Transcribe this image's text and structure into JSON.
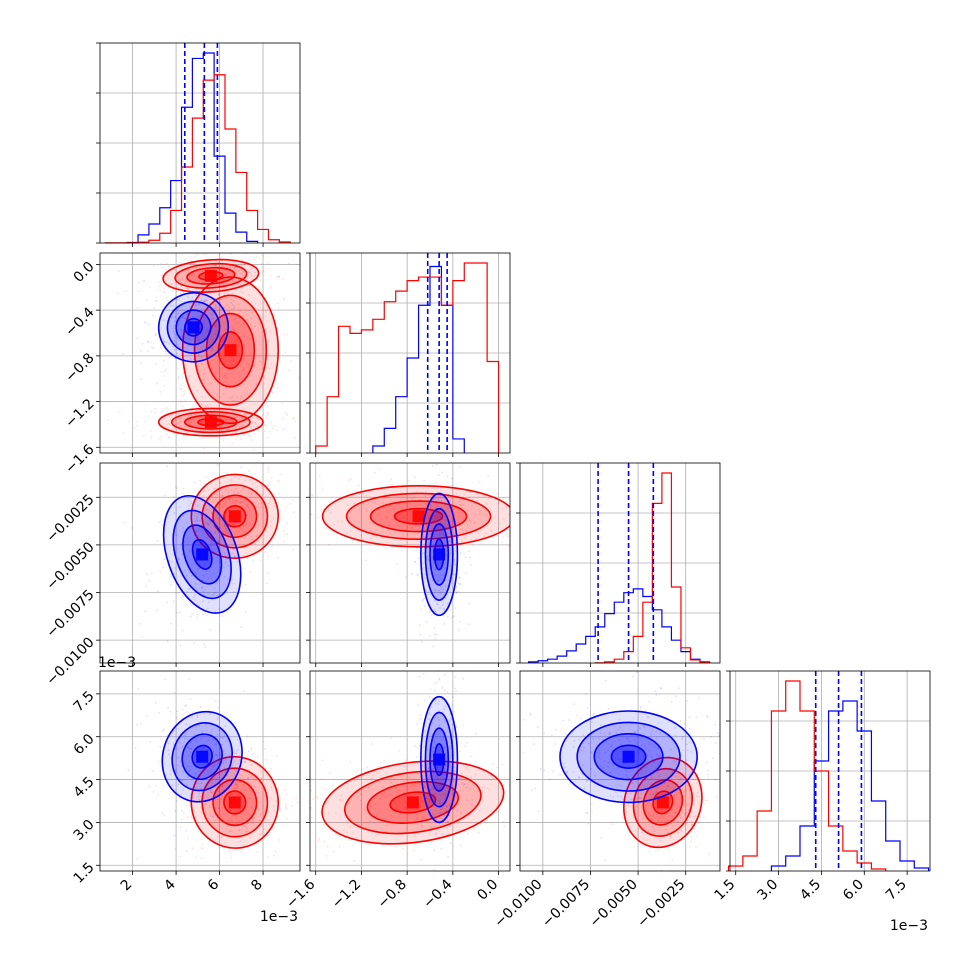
{
  "colors": {
    "series_a": "#ff0000",
    "series_b": "#0000ff",
    "grid": "#b0b0b0",
    "axes": "#000000"
  },
  "chart_data": {
    "type": "corner",
    "grid": true,
    "params": [
      {
        "id": "p0",
        "range": [
          0.0005,
          0.0097
        ],
        "ticks": [
          0.002,
          0.004,
          0.006,
          0.008
        ],
        "tick_labels": [
          "2",
          "4",
          "6",
          "8"
        ],
        "offset": "1e−3",
        "quantiles_b": [
          0.0044,
          0.0053,
          0.0059
        ]
      },
      {
        "id": "p1",
        "range": [
          -1.65,
          0.1
        ],
        "ticks": [
          -1.6,
          -1.2,
          -0.8,
          -0.4,
          0.0
        ],
        "tick_labels": [
          "−1.6",
          "−1.2",
          "−0.8",
          "−0.4",
          "0.0"
        ],
        "offset": "",
        "quantiles_b": [
          -0.62,
          -0.52,
          -0.45
        ]
      },
      {
        "id": "p2",
        "range": [
          -0.0112,
          -0.0007
        ],
        "ticks": [
          -0.01,
          -0.0075,
          -0.005,
          -0.0025
        ],
        "tick_labels": [
          "−0.0100",
          "−0.0075",
          "−0.0050",
          "−0.0025"
        ],
        "offset": "",
        "quantiles_b": [
          -0.0071,
          -0.0055,
          -0.0042
        ]
      },
      {
        "id": "p3",
        "range": [
          0.0013,
          0.0083
        ],
        "ticks": [
          0.0015,
          0.003,
          0.0045,
          0.006,
          0.0075
        ],
        "tick_labels": [
          "1.5",
          "3.0",
          "4.5",
          "6.0",
          "7.5"
        ],
        "offset": "1e−3",
        "quantiles_b": [
          0.0043,
          0.0051,
          0.0059
        ]
      }
    ],
    "marginals": [
      {
        "param": "p0",
        "series_a": {
          "bins": [
            0.001,
            0.0015,
            0.002,
            0.0025,
            0.003,
            0.0035,
            0.004,
            0.0045,
            0.005,
            0.0055,
            0.006,
            0.0065,
            0.007,
            0.0075,
            0.008,
            0.0085,
            0.009
          ],
          "values": [
            0.02,
            0.03,
            0.05,
            0.15,
            0.5,
            1.8,
            6.0,
            14.0,
            23.0,
            30.0,
            31.0,
            21.0,
            13.0,
            6.0,
            2.5,
            0.6,
            0.2
          ]
        },
        "series_b": {
          "bins": [
            0.002,
            0.0025,
            0.003,
            0.0035,
            0.004,
            0.0045,
            0.005,
            0.0055,
            0.006,
            0.0065,
            0.007,
            0.0075
          ],
          "values": [
            0.1,
            1.5,
            3.5,
            6.5,
            11.5,
            25.0,
            34.0,
            35.0,
            16.0,
            5.5,
            2.0,
            0.3
          ]
        }
      },
      {
        "param": "p1",
        "series_a": {
          "bins": [
            -1.55,
            -1.45,
            -1.35,
            -1.25,
            -1.15,
            -1.05,
            -0.95,
            -0.85,
            -0.75,
            -0.65,
            -0.55,
            -0.45,
            -0.35,
            -0.25,
            -0.15,
            -0.05
          ],
          "values": [
            1.0,
            8.0,
            18.0,
            17.0,
            17.5,
            19.0,
            21.5,
            23.0,
            24.5,
            25.0,
            25.0,
            21.0,
            24.5,
            27.0,
            27.0,
            13.0
          ]
        },
        "series_b": {
          "bins": [
            -1.05,
            -0.95,
            -0.85,
            -0.75,
            -0.65,
            -0.55,
            -0.45,
            -0.35
          ],
          "values": [
            1.0,
            3.5,
            8.0,
            13.5,
            21.0,
            26.5,
            21.0,
            2.0
          ]
        }
      },
      {
        "param": "p2",
        "series_a": {
          "bins": [
            -0.007,
            -0.0065,
            -0.006,
            -0.0055,
            -0.005,
            -0.0045,
            -0.004,
            -0.0035,
            -0.003,
            -0.0025,
            -0.002,
            -0.0015
          ],
          "values": [
            0.05,
            0.3,
            1.0,
            3.0,
            7.0,
            16.0,
            42.0,
            50.0,
            20.0,
            4.0,
            0.8,
            0.2
          ]
        },
        "series_b": {
          "bins": [
            -0.0105,
            -0.01,
            -0.0095,
            -0.009,
            -0.0085,
            -0.008,
            -0.0075,
            -0.007,
            -0.0065,
            -0.006,
            -0.0055,
            -0.005,
            -0.0045,
            -0.004,
            -0.0035,
            -0.003,
            -0.0025,
            -0.002,
            -0.0015
          ],
          "values": [
            0.3,
            0.6,
            1.0,
            1.8,
            3.2,
            5.0,
            7.0,
            9.5,
            13.0,
            16.0,
            18.5,
            19.5,
            17.5,
            14.0,
            9.5,
            6.0,
            3.0,
            1.0,
            0.3
          ]
        }
      },
      {
        "param": "p3",
        "series_a": {
          "bins": [
            0.0015,
            0.002,
            0.0025,
            0.003,
            0.0035,
            0.004,
            0.0045,
            0.005,
            0.0055,
            0.006,
            0.0065
          ],
          "values": [
            0.5,
            1.5,
            6.0,
            16.0,
            19.0,
            16.0,
            10.0,
            4.5,
            2.0,
            0.8,
            0.2
          ]
        },
        "series_b": {
          "bins": [
            0.003,
            0.0035,
            0.004,
            0.0045,
            0.005,
            0.0055,
            0.006,
            0.0065,
            0.007,
            0.0075,
            0.008
          ],
          "values": [
            0.5,
            1.5,
            4.5,
            11.0,
            16.0,
            17.0,
            14.0,
            7.0,
            3.0,
            1.0,
            0.3
          ]
        }
      }
    ],
    "joints": [
      {
        "x": "p0",
        "y": "p1",
        "series_a": [
          {
            "cx": 0.0065,
            "cy": -0.75,
            "sx": 0.0011,
            "sy": 0.32,
            "rho": 0.0
          },
          {
            "cx": 0.0056,
            "cy": -0.1,
            "sx": 0.0011,
            "sy": 0.07,
            "rho": 0.2
          },
          {
            "cx": 0.0056,
            "cy": -1.38,
            "sx": 0.0012,
            "sy": 0.06,
            "rho": 0.0
          }
        ],
        "series_b": [
          {
            "cx": 0.0048,
            "cy": -0.55,
            "sx": 0.0008,
            "sy": 0.15,
            "rho": 0.5
          }
        ]
      },
      {
        "x": "p0",
        "y": "p2",
        "series_a": [
          {
            "cx": 0.0067,
            "cy": -0.0035,
            "sx": 0.001,
            "sy": 0.0011,
            "rho": 0.1
          }
        ],
        "series_b": [
          {
            "cx": 0.0052,
            "cy": -0.0055,
            "sx": 0.0008,
            "sy": 0.0016,
            "rho": 0.2
          }
        ]
      },
      {
        "x": "p0",
        "y": "p3",
        "series_a": [
          {
            "cx": 0.0067,
            "cy": 0.0037,
            "sx": 0.001,
            "sy": 0.0008,
            "rho": 0.1
          }
        ],
        "series_b": [
          {
            "cx": 0.0052,
            "cy": 0.0053,
            "sx": 0.0009,
            "sy": 0.0008,
            "rho": -0.3
          }
        ]
      },
      {
        "x": "p1",
        "y": "p2",
        "series_a": [
          {
            "cx": -0.7,
            "cy": -0.0035,
            "sx": 0.42,
            "sy": 0.0008,
            "rho": 0.0
          }
        ],
        "series_b": [
          {
            "cx": -0.52,
            "cy": -0.0055,
            "sx": 0.08,
            "sy": 0.0016,
            "rho": 0.0
          }
        ]
      },
      {
        "x": "p1",
        "y": "p3",
        "series_a": [
          {
            "cx": -0.75,
            "cy": 0.0037,
            "sx": 0.4,
            "sy": 0.0007,
            "rho": 0.3
          }
        ],
        "series_b": [
          {
            "cx": -0.52,
            "cy": 0.0052,
            "sx": 0.08,
            "sy": 0.0011,
            "rho": 0.0
          }
        ]
      },
      {
        "x": "p2",
        "y": "p3",
        "series_a": [
          {
            "cx": -0.0037,
            "cy": 0.0037,
            "sx": 0.001,
            "sy": 0.0008,
            "rho": -0.3
          }
        ],
        "series_b": [
          {
            "cx": -0.0055,
            "cy": 0.0053,
            "sx": 0.0018,
            "sy": 0.0008,
            "rho": 0.0
          }
        ]
      }
    ]
  }
}
